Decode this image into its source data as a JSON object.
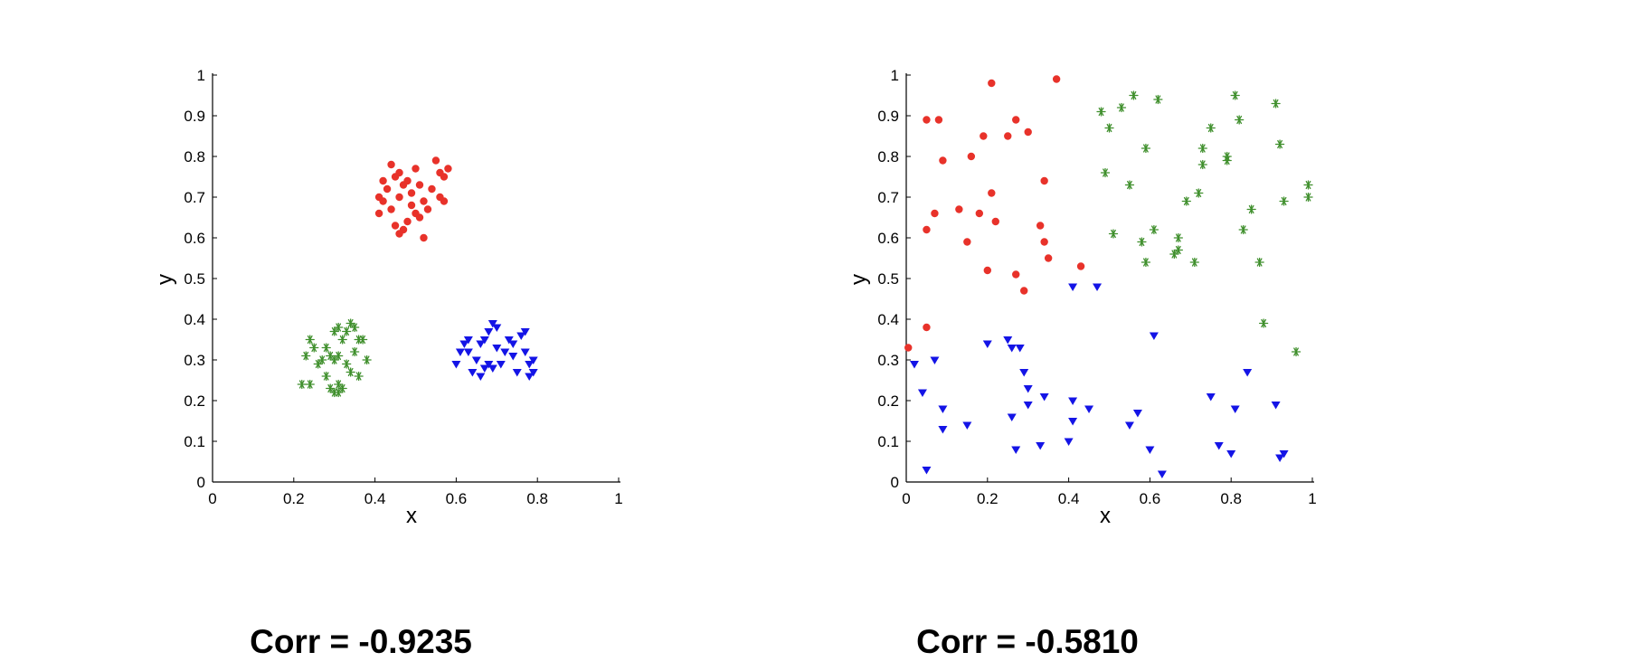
{
  "colors": {
    "red": "#e8322a",
    "green": "#3f8f2c",
    "blue": "#1414e6",
    "axis": "#000000"
  },
  "chart_data": [
    {
      "type": "scatter",
      "title": "",
      "xlabel": "x",
      "ylabel": "y",
      "xlim": [
        0,
        1
      ],
      "ylim": [
        0,
        1
      ],
      "xticks": [
        "0",
        "0.2",
        "0.4",
        "0.6",
        "0.8",
        "1"
      ],
      "yticks": [
        "0",
        "0.1",
        "0.2",
        "0.3",
        "0.4",
        "0.5",
        "0.6",
        "0.7",
        "0.8",
        "0.9",
        "1"
      ],
      "grid": false,
      "caption": "Corr = -0.9235",
      "series": [
        {
          "marker": "circle",
          "color": "red",
          "points": [
            [
              0.41,
              0.7
            ],
            [
              0.42,
              0.74
            ],
            [
              0.44,
              0.78
            ],
            [
              0.45,
              0.75
            ],
            [
              0.46,
              0.76
            ],
            [
              0.47,
              0.73
            ],
            [
              0.48,
              0.74
            ],
            [
              0.49,
              0.71
            ],
            [
              0.5,
              0.77
            ],
            [
              0.51,
              0.73
            ],
            [
              0.52,
              0.69
            ],
            [
              0.54,
              0.72
            ],
            [
              0.55,
              0.79
            ],
            [
              0.56,
              0.76
            ],
            [
              0.57,
              0.75
            ],
            [
              0.58,
              0.77
            ],
            [
              0.56,
              0.7
            ],
            [
              0.57,
              0.69
            ],
            [
              0.53,
              0.67
            ],
            [
              0.51,
              0.65
            ],
            [
              0.5,
              0.66
            ],
            [
              0.48,
              0.64
            ],
            [
              0.47,
              0.62
            ],
            [
              0.46,
              0.61
            ],
            [
              0.45,
              0.63
            ],
            [
              0.52,
              0.6
            ],
            [
              0.46,
              0.7
            ],
            [
              0.43,
              0.72
            ],
            [
              0.42,
              0.69
            ],
            [
              0.41,
              0.66
            ],
            [
              0.44,
              0.67
            ],
            [
              0.49,
              0.68
            ]
          ]
        },
        {
          "marker": "asterisk",
          "color": "green",
          "points": [
            [
              0.22,
              0.24
            ],
            [
              0.24,
              0.24
            ],
            [
              0.23,
              0.31
            ],
            [
              0.24,
              0.35
            ],
            [
              0.25,
              0.33
            ],
            [
              0.26,
              0.29
            ],
            [
              0.27,
              0.3
            ],
            [
              0.28,
              0.26
            ],
            [
              0.29,
              0.23
            ],
            [
              0.3,
              0.22
            ],
            [
              0.31,
              0.24
            ],
            [
              0.31,
              0.22
            ],
            [
              0.3,
              0.3
            ],
            [
              0.29,
              0.31
            ],
            [
              0.31,
              0.31
            ],
            [
              0.3,
              0.37
            ],
            [
              0.31,
              0.38
            ],
            [
              0.32,
              0.35
            ],
            [
              0.33,
              0.37
            ],
            [
              0.34,
              0.39
            ],
            [
              0.35,
              0.38
            ],
            [
              0.36,
              0.35
            ],
            [
              0.37,
              0.35
            ],
            [
              0.35,
              0.32
            ],
            [
              0.38,
              0.3
            ],
            [
              0.36,
              0.26
            ],
            [
              0.34,
              0.27
            ],
            [
              0.33,
              0.29
            ],
            [
              0.28,
              0.33
            ],
            [
              0.32,
              0.23
            ]
          ]
        },
        {
          "marker": "triangle-down",
          "color": "blue",
          "points": [
            [
              0.6,
              0.29
            ],
            [
              0.61,
              0.32
            ],
            [
              0.62,
              0.34
            ],
            [
              0.63,
              0.32
            ],
            [
              0.64,
              0.27
            ],
            [
              0.65,
              0.3
            ],
            [
              0.66,
              0.26
            ],
            [
              0.66,
              0.34
            ],
            [
              0.67,
              0.35
            ],
            [
              0.68,
              0.37
            ],
            [
              0.69,
              0.39
            ],
            [
              0.7,
              0.38
            ],
            [
              0.68,
              0.29
            ],
            [
              0.69,
              0.28
            ],
            [
              0.71,
              0.29
            ],
            [
              0.72,
              0.32
            ],
            [
              0.73,
              0.35
            ],
            [
              0.74,
              0.34
            ],
            [
              0.74,
              0.31
            ],
            [
              0.75,
              0.27
            ],
            [
              0.76,
              0.36
            ],
            [
              0.77,
              0.37
            ],
            [
              0.78,
              0.29
            ],
            [
              0.79,
              0.3
            ],
            [
              0.78,
              0.26
            ],
            [
              0.79,
              0.27
            ],
            [
              0.67,
              0.28
            ],
            [
              0.7,
              0.33
            ],
            [
              0.63,
              0.35
            ],
            [
              0.77,
              0.32
            ]
          ]
        }
      ]
    },
    {
      "type": "scatter",
      "title": "",
      "xlabel": "x",
      "ylabel": "y",
      "xlim": [
        0,
        1
      ],
      "ylim": [
        0,
        1
      ],
      "xticks": [
        "0",
        "0.2",
        "0.4",
        "0.6",
        "0.8",
        "1"
      ],
      "yticks": [
        "0",
        "0.1",
        "0.2",
        "0.3",
        "0.4",
        "0.5",
        "0.6",
        "0.7",
        "0.8",
        "0.9",
        "1"
      ],
      "grid": false,
      "caption": "Corr = -0.5810",
      "series": [
        {
          "marker": "circle",
          "color": "red",
          "points": [
            [
              0.005,
              0.33
            ],
            [
              0.05,
              0.38
            ],
            [
              0.05,
              0.62
            ],
            [
              0.05,
              0.89
            ],
            [
              0.07,
              0.66
            ],
            [
              0.08,
              0.89
            ],
            [
              0.09,
              0.79
            ],
            [
              0.13,
              0.67
            ],
            [
              0.15,
              0.59
            ],
            [
              0.16,
              0.8
            ],
            [
              0.18,
              0.66
            ],
            [
              0.19,
              0.85
            ],
            [
              0.2,
              0.52
            ],
            [
              0.21,
              0.71
            ],
            [
              0.21,
              0.98
            ],
            [
              0.22,
              0.64
            ],
            [
              0.25,
              0.85
            ],
            [
              0.27,
              0.51
            ],
            [
              0.27,
              0.89
            ],
            [
              0.29,
              0.47
            ],
            [
              0.3,
              0.86
            ],
            [
              0.33,
              0.63
            ],
            [
              0.34,
              0.74
            ],
            [
              0.34,
              0.59
            ],
            [
              0.35,
              0.55
            ],
            [
              0.37,
              0.99
            ],
            [
              0.43,
              0.53
            ]
          ]
        },
        {
          "marker": "asterisk",
          "color": "green",
          "points": [
            [
              0.48,
              0.91
            ],
            [
              0.49,
              0.76
            ],
            [
              0.5,
              0.87
            ],
            [
              0.51,
              0.61
            ],
            [
              0.53,
              0.92
            ],
            [
              0.55,
              0.73
            ],
            [
              0.56,
              0.95
            ],
            [
              0.58,
              0.59
            ],
            [
              0.59,
              0.82
            ],
            [
              0.59,
              0.54
            ],
            [
              0.61,
              0.62
            ],
            [
              0.62,
              0.94
            ],
            [
              0.66,
              0.56
            ],
            [
              0.67,
              0.57
            ],
            [
              0.67,
              0.6
            ],
            [
              0.69,
              0.69
            ],
            [
              0.71,
              0.54
            ],
            [
              0.72,
              0.71
            ],
            [
              0.73,
              0.78
            ],
            [
              0.73,
              0.82
            ],
            [
              0.75,
              0.87
            ],
            [
              0.79,
              0.79
            ],
            [
              0.79,
              0.8
            ],
            [
              0.81,
              0.95
            ],
            [
              0.82,
              0.89
            ],
            [
              0.83,
              0.62
            ],
            [
              0.85,
              0.67
            ],
            [
              0.87,
              0.54
            ],
            [
              0.88,
              0.39
            ],
            [
              0.91,
              0.93
            ],
            [
              0.92,
              0.83
            ],
            [
              0.93,
              0.69
            ],
            [
              0.96,
              0.32
            ],
            [
              0.99,
              0.73
            ],
            [
              0.99,
              0.7
            ]
          ]
        },
        {
          "marker": "triangle-down",
          "color": "blue",
          "points": [
            [
              0.02,
              0.29
            ],
            [
              0.04,
              0.22
            ],
            [
              0.05,
              0.03
            ],
            [
              0.07,
              0.3
            ],
            [
              0.09,
              0.18
            ],
            [
              0.09,
              0.13
            ],
            [
              0.15,
              0.14
            ],
            [
              0.2,
              0.34
            ],
            [
              0.25,
              0.35
            ],
            [
              0.26,
              0.33
            ],
            [
              0.26,
              0.16
            ],
            [
              0.27,
              0.08
            ],
            [
              0.28,
              0.33
            ],
            [
              0.29,
              0.27
            ],
            [
              0.3,
              0.19
            ],
            [
              0.3,
              0.23
            ],
            [
              0.33,
              0.09
            ],
            [
              0.34,
              0.21
            ],
            [
              0.4,
              0.1
            ],
            [
              0.41,
              0.15
            ],
            [
              0.41,
              0.2
            ],
            [
              0.41,
              0.48
            ],
            [
              0.45,
              0.18
            ],
            [
              0.47,
              0.48
            ],
            [
              0.55,
              0.14
            ],
            [
              0.57,
              0.17
            ],
            [
              0.6,
              0.08
            ],
            [
              0.61,
              0.36
            ],
            [
              0.63,
              0.02
            ],
            [
              0.75,
              0.21
            ],
            [
              0.77,
              0.09
            ],
            [
              0.8,
              0.07
            ],
            [
              0.81,
              0.18
            ],
            [
              0.84,
              0.27
            ],
            [
              0.91,
              0.19
            ],
            [
              0.92,
              0.06
            ],
            [
              0.93,
              0.07
            ]
          ]
        }
      ]
    }
  ]
}
